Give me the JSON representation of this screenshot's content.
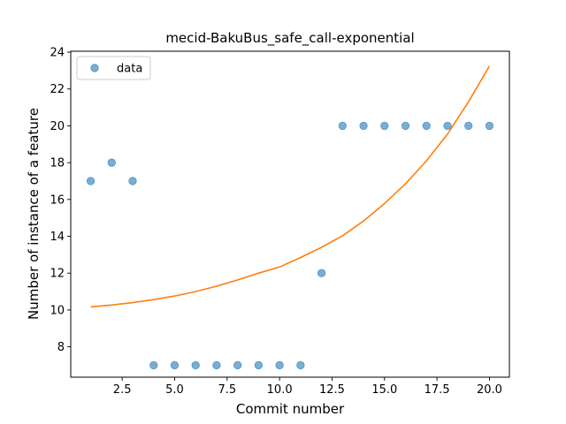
{
  "chart_data": {
    "type": "scatter",
    "title": "mecid-BakuBus_safe_call-exponential",
    "xlabel": "Commit number",
    "ylabel": "Number of instance of a feature",
    "xlim": [
      0.05,
      20.95
    ],
    "ylim": [
      6.35,
      24.05
    ],
    "xticks": [
      2.5,
      5.0,
      7.5,
      10.0,
      12.5,
      15.0,
      17.5,
      20.0
    ],
    "xtick_labels": [
      "2.5",
      "5.0",
      "7.5",
      "10.0",
      "12.5",
      "15.0",
      "17.5",
      "20.0"
    ],
    "yticks": [
      8,
      10,
      12,
      14,
      16,
      18,
      20,
      22,
      24
    ],
    "ytick_labels": [
      "8",
      "10",
      "12",
      "14",
      "16",
      "18",
      "20",
      "22",
      "24"
    ],
    "grid": false,
    "legend_position": "top-left",
    "series": [
      {
        "name": "data",
        "kind": "scatter",
        "color": "#1f77b4",
        "x": [
          1,
          2,
          3,
          4,
          5,
          6,
          7,
          8,
          9,
          10,
          11,
          12,
          13,
          14,
          15,
          16,
          17,
          18,
          19,
          20
        ],
        "y": [
          17,
          18,
          17,
          7,
          7,
          7,
          7,
          7,
          7,
          7,
          7,
          12,
          20,
          20,
          20,
          20,
          20,
          20,
          20,
          20
        ]
      },
      {
        "kind": "line",
        "color": "#ff7f0e",
        "x": [
          1,
          2,
          3,
          4,
          5,
          6,
          7,
          8,
          9,
          10,
          11,
          12,
          13,
          14,
          15,
          16,
          17,
          18,
          19,
          20
        ],
        "y": [
          10.17,
          10.27,
          10.4,
          10.56,
          10.76,
          11.0,
          11.29,
          11.63,
          12.0,
          12.33,
          12.85,
          13.4,
          14.03,
          14.83,
          15.78,
          16.85,
          18.1,
          19.55,
          21.3,
          23.25
        ]
      }
    ]
  }
}
